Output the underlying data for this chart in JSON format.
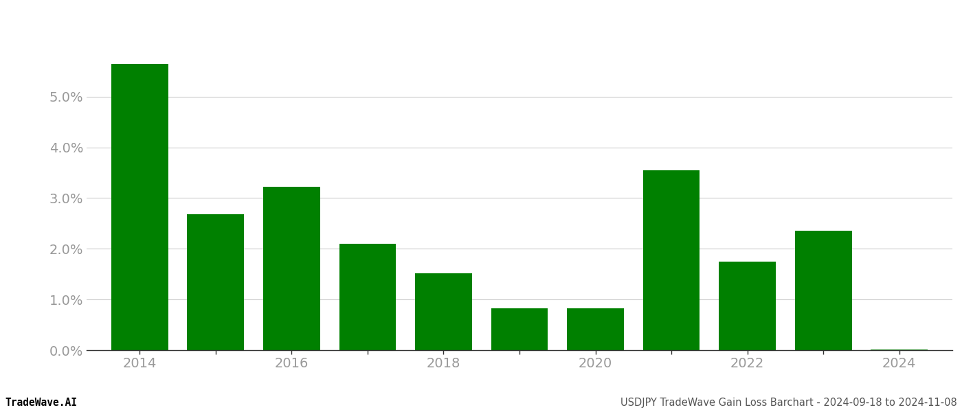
{
  "years": [
    2014,
    2015,
    2016,
    2017,
    2018,
    2019,
    2020,
    2021,
    2022,
    2023,
    2024
  ],
  "values": [
    0.0565,
    0.0268,
    0.0322,
    0.021,
    0.0152,
    0.0082,
    0.0082,
    0.0355,
    0.0175,
    0.0235,
    0.0002
  ],
  "bar_color": "#008000",
  "background_color": "#ffffff",
  "grid_color": "#cccccc",
  "tick_label_color": "#999999",
  "ylim": [
    0,
    0.065
  ],
  "yticks": [
    0.0,
    0.01,
    0.02,
    0.03,
    0.04,
    0.05
  ],
  "xtick_labels": [
    2014,
    2016,
    2018,
    2020,
    2022,
    2024
  ],
  "footer_left": "TradeWave.AI",
  "footer_right": "USDJPY TradeWave Gain Loss Barchart - 2024-09-18 to 2024-11-08",
  "footer_fontsize": 10.5,
  "tick_fontsize": 14,
  "bar_width": 0.75,
  "xlim_left": 2013.3,
  "xlim_right": 2024.7
}
